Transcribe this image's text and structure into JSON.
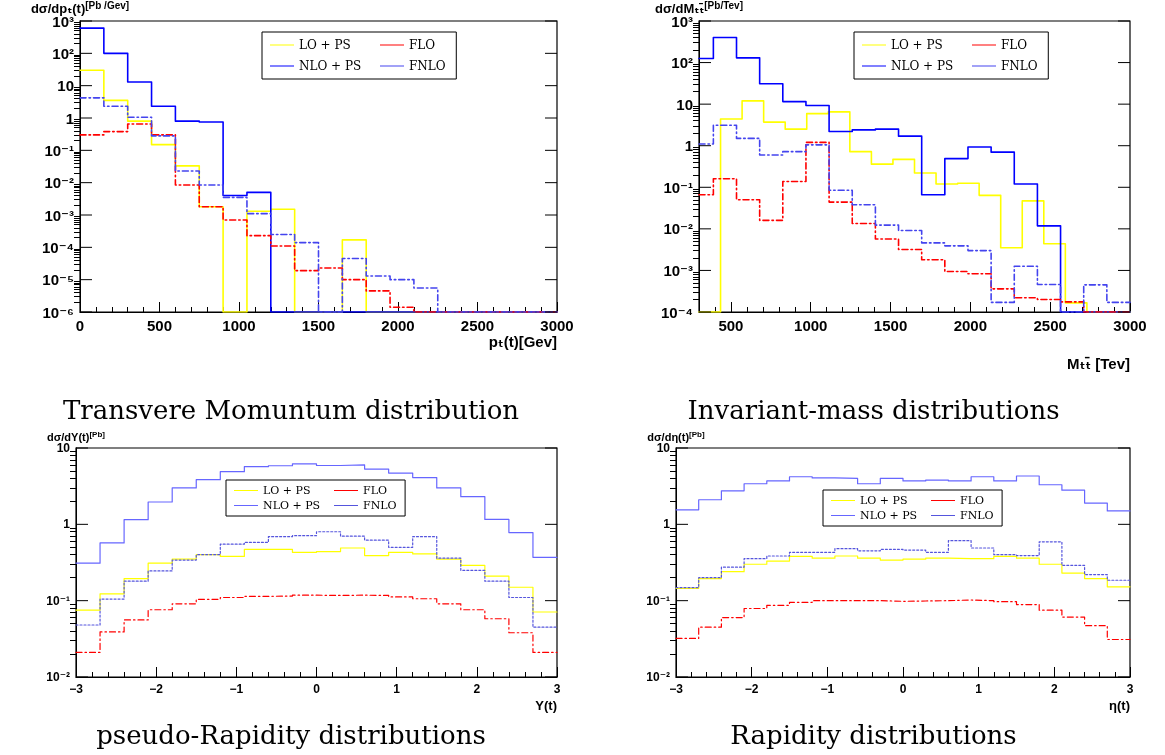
{
  "chart_data": [
    {
      "type": "histogram",
      "title": "Transvere Momuntum distribution",
      "xlabel": "pₜ(t)[Gev]",
      "ylabel": "dσ/dpₜ(t)$^{[Pb /Gev]}$",
      "log": "y",
      "grid": false,
      "legend": "top",
      "xlim": [
        0,
        3000
      ],
      "xticks": [
        0,
        500,
        1000,
        1500,
        2000,
        2500,
        3000
      ],
      "ylim": [
        1e-06,
        1000
      ],
      "yticks": [
        {
          "value": 1e-06,
          "label": "10⁻⁶"
        },
        {
          "value": 1e-05,
          "label": "10⁻⁵"
        },
        {
          "value": 0.0001,
          "label": "10⁻⁴"
        },
        {
          "value": 0.001,
          "label": "10⁻³"
        },
        {
          "value": 0.01,
          "label": "10⁻²"
        },
        {
          "value": 0.1,
          "label": "10⁻¹"
        },
        {
          "value": 1,
          "label": "1"
        },
        {
          "value": 10,
          "label": "10"
        },
        {
          "value": 100,
          "label": "10²"
        },
        {
          "value": 1000,
          "label": "10³"
        }
      ],
      "bins": [
        0,
        150,
        300,
        450,
        600,
        750,
        900,
        1050,
        1200,
        1350,
        1500,
        1650,
        1800,
        1950,
        2100,
        2250,
        2400,
        2550,
        2700,
        2850,
        3000
      ],
      "series": [
        {
          "name": "LO + PS",
          "color": "#ffff00",
          "line_style": "solid",
          "values": [
            30,
            3.5,
            0.8,
            0.15,
            0.033,
            0.0018,
            null,
            0.0013,
            0.0015,
            null,
            null,
            0.00017,
            null,
            null,
            null,
            null,
            null,
            null,
            null,
            null
          ]
        },
        {
          "name": "NLO + PS",
          "color": "#0000ff",
          "line_style": "solid",
          "values": [
            600,
            100,
            13,
            2.3,
            0.8,
            0.75,
            0.004,
            0.005,
            null,
            null,
            null,
            null,
            null,
            null,
            null,
            null,
            null,
            null,
            null,
            null
          ]
        },
        {
          "name": "FLO",
          "color": "#ff0000",
          "line_style": "dashed",
          "values": [
            0.3,
            0.38,
            0.65,
            0.3,
            0.0085,
            0.0018,
            0.0007,
            0.00023,
            0.00011,
            1.9e-05,
            2.3e-05,
            1e-05,
            4.5e-06,
            1.4e-06,
            null,
            null,
            null,
            null,
            null,
            null
          ]
        },
        {
          "name": "FNLO",
          "color": "#4444ee",
          "line_style": "dashed",
          "values": [
            4.2,
            2.3,
            1.05,
            0.28,
            0.023,
            0.0085,
            0.0035,
            0.0011,
            0.00025,
            0.00014,
            null,
            4.5e-05,
            1.3e-05,
            1e-05,
            5.5e-06,
            null,
            null,
            null,
            null,
            null
          ]
        }
      ]
    },
    {
      "type": "histogram",
      "title": "Invariant-mass distributions",
      "xlabel": "Mₜₜ̄ [Tev]",
      "ylabel": "dσ/dMₜₜ̄$^{[Pb/Tev]}$",
      "log": "y",
      "grid": false,
      "legend": "top",
      "xlim": [
        300,
        3000
      ],
      "xticks": [
        500,
        1000,
        1500,
        2000,
        2500,
        3000
      ],
      "ylim": [
        0.0001,
        1000
      ],
      "yticks": [
        {
          "value": 0.0001,
          "label": "10⁻⁴"
        },
        {
          "value": 0.001,
          "label": "10⁻³"
        },
        {
          "value": 0.01,
          "label": "10⁻²"
        },
        {
          "value": 0.1,
          "label": "10⁻¹"
        },
        {
          "value": 1,
          "label": "1"
        },
        {
          "value": 10,
          "label": "10"
        },
        {
          "value": 100,
          "label": "10²"
        },
        {
          "value": 1000,
          "label": "10³"
        }
      ],
      "bins": [
        300,
        390,
        535,
        680,
        825,
        970,
        1115,
        1260,
        1405,
        1550,
        1695,
        1840,
        1985,
        2130,
        2275,
        2420,
        2565,
        2710,
        2855,
        3000
      ],
      "series": [
        {
          "name": "LO + PS",
          "color": "#ffff00",
          "line_style": "solid",
          "bins": [
            300,
            435,
            570,
            705,
            840,
            975,
            1110,
            1245,
            1380,
            1515,
            1650,
            1785,
            1920,
            2055,
            2190,
            2325,
            2460,
            2595,
            2730,
            2865,
            3000
          ],
          "values": [
            null,
            4.4,
            12,
            3.7,
            2.5,
            5.9,
            6.5,
            0.72,
            0.36,
            0.47,
            0.22,
            0.12,
            0.125,
            0.064,
            0.0035,
            0.047,
            0.0044,
            0.000166,
            null,
            null
          ]
        },
        {
          "name": "NLO + PS",
          "color": "#0000ff",
          "line_style": "solid",
          "values": [
            125,
            400,
            130,
            31,
            11.5,
            9.3,
            2.2,
            2.4,
            2.5,
            1.7,
            0.066,
            0.49,
            0.93,
            0.7,
            0.12,
            0.0118,
            null,
            null,
            null
          ]
        },
        {
          "name": "FLO",
          "color": "#ff0000",
          "line_style": "dashed",
          "values": [
            0.066,
            0.16,
            0.05,
            0.016,
            0.138,
            1.2,
            0.044,
            0.0135,
            0.0057,
            0.0032,
            0.0018,
            0.00094,
            0.00083,
            0.00036,
            0.00022,
            0.0002,
            0.000175,
            null,
            null
          ]
        },
        {
          "name": "FNLO",
          "color": "#4444ee",
          "line_style": "dashed",
          "values": [
            1.1,
            3.1,
            1.5,
            0.6,
            0.72,
            1.05,
            0.085,
            0.038,
            0.0123,
            0.0091,
            0.0046,
            0.0039,
            0.003,
            0.00017,
            0.00126,
            0.00046,
            null,
            0.00045,
            0.00017
          ]
        }
      ]
    },
    {
      "type": "histogram",
      "title": "pseudo-Rapidity distributions",
      "xlabel": "Y(t)",
      "ylabel": "dσ/dY(t)$^{[Pb]}$",
      "log": "y",
      "grid": false,
      "legend": "top",
      "xlim": [
        -3,
        3
      ],
      "xticks": [
        {
          "value": -3,
          "label": "−3"
        },
        {
          "value": -2,
          "label": "−2"
        },
        {
          "value": -1,
          "label": "−1"
        },
        0,
        1,
        2,
        3
      ],
      "ylim": [
        0.01,
        10
      ],
      "yticks": [
        {
          "value": 0.01,
          "label": "10⁻²"
        },
        {
          "value": 0.1,
          "label": "10⁻¹"
        },
        {
          "value": 1,
          "label": "1"
        },
        {
          "value": 10,
          "label": "10"
        }
      ],
      "bins": [
        -3,
        -2.7,
        -2.4,
        -2.1,
        -1.8,
        -1.5,
        -1.2,
        -0.9,
        -0.6,
        -0.3,
        0,
        0.3,
        0.6,
        0.9,
        1.2,
        1.5,
        1.8,
        2.1,
        2.4,
        2.7,
        3
      ],
      "series": [
        {
          "name": "LO + PS",
          "color": "#ffff00",
          "line_style": "solid",
          "values": [
            0.075,
            0.123,
            0.195,
            0.31,
            0.35,
            0.4,
            0.38,
            0.47,
            0.47,
            0.43,
            0.44,
            0.49,
            0.39,
            0.43,
            0.41,
            0.35,
            0.29,
            0.21,
            0.15,
            0.071
          ]
        },
        {
          "name": "NLO + PS",
          "color": "#6666ff",
          "line_style": "solid",
          "values": [
            0.31,
            0.57,
            1.15,
            1.96,
            3,
            3.85,
            4.9,
            5.7,
            5.85,
            6.2,
            5.9,
            6,
            5.3,
            4.7,
            4.1,
            3,
            2.3,
            1.16,
            0.78,
            0.37
          ]
        },
        {
          "name": "FLO",
          "color": "#ff0000",
          "line_style": "dashed",
          "values": [
            0.021,
            0.039,
            0.056,
            0.076,
            0.091,
            0.104,
            0.11,
            0.114,
            0.115,
            0.118,
            0.117,
            0.118,
            0.117,
            0.112,
            0.106,
            0.091,
            0.076,
            0.058,
            0.038,
            0.021
          ]
        },
        {
          "name": "FNLO",
          "color": "#5555dd",
          "line_style": "dotted",
          "values": [
            0.048,
            0.105,
            0.18,
            0.245,
            0.34,
            0.4,
            0.55,
            0.58,
            0.69,
            0.71,
            0.8,
            0.7,
            0.62,
            0.5,
            0.69,
            0.36,
            0.25,
            0.18,
            0.11,
            0.045
          ]
        }
      ]
    },
    {
      "type": "histogram",
      "title": "Rapidity distributions",
      "xlabel": "η(t)",
      "ylabel": "dσ/dη(t)$^{[Pb]}$",
      "log": "y",
      "grid": false,
      "legend": "top",
      "xlim": [
        -3,
        3
      ],
      "xticks": [
        {
          "value": -3,
          "label": "−3"
        },
        {
          "value": -2,
          "label": "−2"
        },
        {
          "value": -1,
          "label": "−1"
        },
        0,
        1,
        2,
        3
      ],
      "ylim": [
        0.01,
        10
      ],
      "yticks": [
        {
          "value": 0.01,
          "label": "10⁻²"
        },
        {
          "value": 0.1,
          "label": "10⁻¹"
        },
        {
          "value": 1,
          "label": "1"
        },
        {
          "value": 10,
          "label": "10"
        }
      ],
      "bins": [
        -3,
        -2.7,
        -2.4,
        -2.1,
        -1.8,
        -1.5,
        -1.2,
        -0.9,
        -0.6,
        -0.3,
        0,
        0.3,
        0.6,
        0.9,
        1.2,
        1.5,
        1.8,
        2.1,
        2.4,
        2.7,
        3
      ],
      "series": [
        {
          "name": "LO + PS",
          "color": "#ffff00",
          "line_style": "solid",
          "values": [
            0.145,
            0.195,
            0.24,
            0.3,
            0.33,
            0.38,
            0.36,
            0.385,
            0.36,
            0.34,
            0.35,
            0.36,
            0.355,
            0.355,
            0.38,
            0.36,
            0.3,
            0.23,
            0.195,
            0.152
          ]
        },
        {
          "name": "NLO + PS",
          "color": "#6666ff",
          "line_style": "solid",
          "values": [
            1.55,
            2.1,
            2.75,
            3.4,
            3.7,
            4.2,
            4.05,
            4,
            3.4,
            4,
            3.7,
            3.8,
            3.7,
            4.2,
            3.7,
            4.3,
            3.3,
            2.8,
            1.9,
            1.5
          ]
        },
        {
          "name": "FLO",
          "color": "#ff0000",
          "line_style": "dashed",
          "values": [
            0.032,
            0.045,
            0.06,
            0.079,
            0.087,
            0.095,
            0.1,
            0.1,
            0.1,
            0.098,
            0.099,
            0.1,
            0.102,
            0.1,
            0.097,
            0.089,
            0.075,
            0.061,
            0.047,
            0.031
          ]
        },
        {
          "name": "FNLO",
          "color": "#5555dd",
          "line_style": "dotted",
          "values": [
            0.148,
            0.2,
            0.275,
            0.355,
            0.385,
            0.43,
            0.43,
            0.48,
            0.45,
            0.47,
            0.46,
            0.43,
            0.61,
            0.49,
            0.4,
            0.39,
            0.59,
            0.29,
            0.22,
            0.185
          ]
        }
      ]
    }
  ]
}
